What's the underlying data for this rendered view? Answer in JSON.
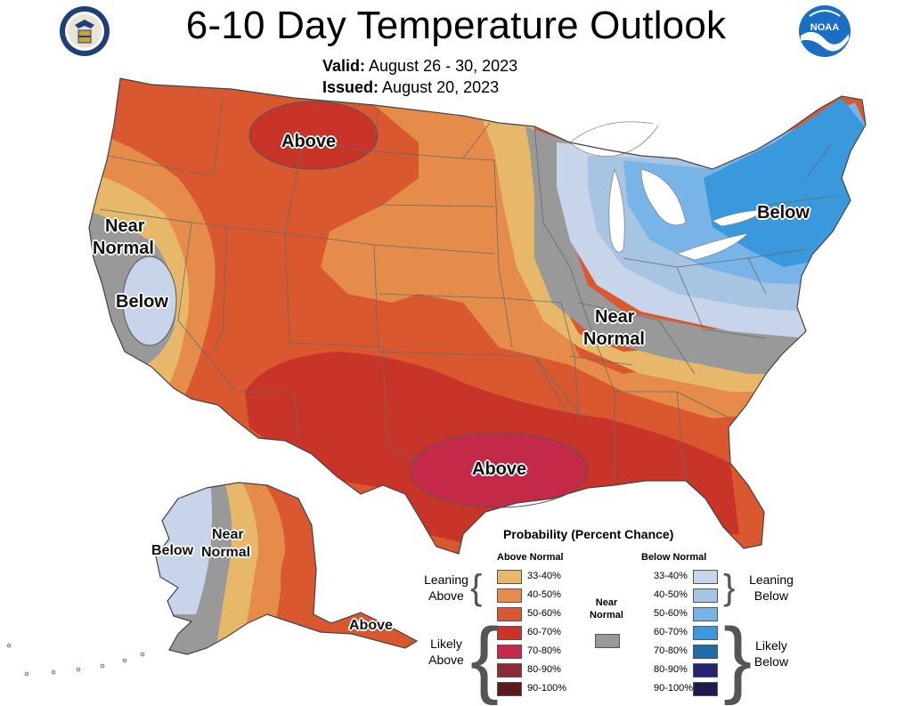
{
  "header": {
    "title": "6-10 Day Temperature Outlook",
    "valid_label": "Valid:",
    "valid_value": "August 26 - 30, 2023",
    "issued_label": "Issued:",
    "issued_value": "August 20, 2023"
  },
  "map": {
    "labels": {
      "above_north": "Above",
      "above_south": "Above",
      "near_normal_west_1": "Near",
      "near_normal_west_2": "Normal",
      "below_west": "Below",
      "near_normal_east_1": "Near",
      "near_normal_east_2": "Normal",
      "below_east": "Below",
      "alaska_below": "Below",
      "alaska_near_1": "Near",
      "alaska_near_2": "Normal",
      "alaska_above": "Above"
    },
    "colors": {
      "above_33_40": "#e8b86a",
      "above_40_50": "#e58c4a",
      "above_50_60": "#d9582f",
      "above_60_70": "#c83428",
      "above_70_80": "#c42a48",
      "above_80_90": "#8c2a36",
      "above_90_100": "#5c1a1f",
      "near_normal": "#999999",
      "below_33_40": "#c8d4ea",
      "below_40_50": "#a8c4e3",
      "below_50_60": "#78b4e8",
      "below_60_70": "#3a98dc",
      "below_70_80": "#1f6aa8",
      "below_80_90": "#242274",
      "below_90_100": "#1d1a4e"
    }
  },
  "legend": {
    "title": "Probability (Percent Chance)",
    "above_header": "Above Normal",
    "below_header": "Below Normal",
    "near_label_1": "Near",
    "near_label_2": "Normal",
    "leaning_above_1": "Leaning",
    "leaning_above_2": "Above",
    "likely_above_1": "Likely",
    "likely_above_2": "Above",
    "leaning_below_1": "Leaning",
    "leaning_below_2": "Below",
    "likely_below_1": "Likely",
    "likely_below_2": "Below",
    "above_ranges": [
      "33-40%",
      "40-50%",
      "50-60%",
      "60-70%",
      "70-80%",
      "80-90%",
      "90-100%"
    ],
    "below_ranges": [
      "33-40%",
      "40-50%",
      "50-60%",
      "60-70%",
      "70-80%",
      "80-90%",
      "90-100%"
    ]
  }
}
